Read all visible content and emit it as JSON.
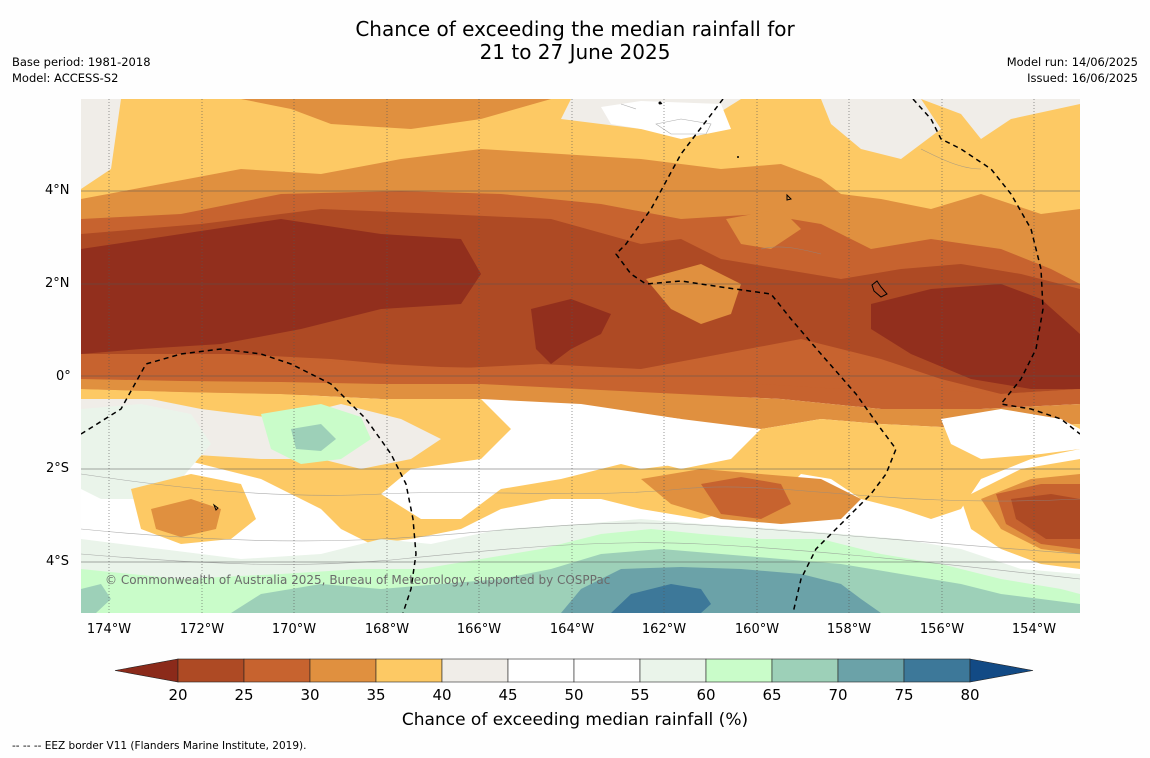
{
  "title_line1": "Chance of exceeding the median rainfall for",
  "title_line2": "21 to 27 June 2025",
  "meta_left": {
    "base_period": "Base period: 1981-2018",
    "model": "Model: ACCESS-S2"
  },
  "meta_right": {
    "model_run": "Model run: 14/06/2025",
    "issued": "Issued: 16/06/2025"
  },
  "lat_labels": [
    "4°N",
    "2°N",
    "0°",
    "2°S",
    "4°S"
  ],
  "lon_labels": [
    "174°W",
    "172°W",
    "170°W",
    "168°W",
    "166°W",
    "164°W",
    "162°W",
    "160°W",
    "158°W",
    "156°W",
    "154°W"
  ],
  "colorbar": {
    "ticks": [
      "20",
      "25",
      "30",
      "35",
      "40",
      "45",
      "50",
      "55",
      "60",
      "65",
      "70",
      "75",
      "80"
    ],
    "title": "Chance of exceeding median rainfall (%)",
    "colors": [
      "#8b2a1a",
      "#ae4a24",
      "#c7632f",
      "#e0903f",
      "#fdc964",
      "#f0ede8",
      "#ffffff",
      "#ffffff",
      "#eaf4ea",
      "#c9fcc9",
      "#9dd0b8",
      "#6ba2a8",
      "#3d7899",
      "#124a85"
    ]
  },
  "copyright": "© Commonwealth of Australia 2025, Bureau of Meteorology, supported by COSPPac",
  "footnote": "--  --  -- EEZ border V11 (Flanders Marine Institute, 2019)."
}
